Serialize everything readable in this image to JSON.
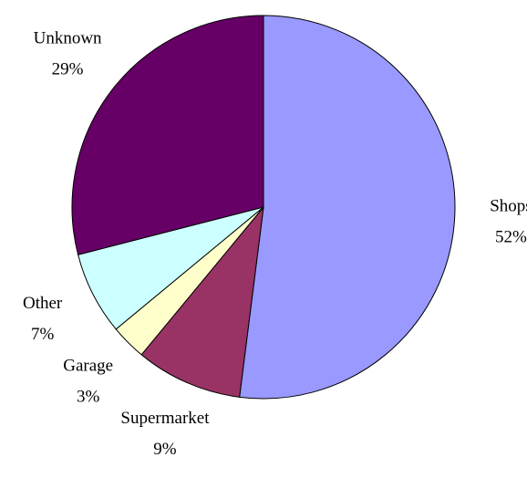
{
  "chart_data": {
    "type": "pie",
    "categories": [
      "Shops",
      "Supermarket",
      "Garage",
      "Other",
      "Unknown"
    ],
    "values": [
      52,
      9,
      3,
      7,
      29
    ],
    "value_labels": [
      "52%",
      "9%",
      "3%",
      "7%",
      "29%"
    ],
    "colors": [
      "#9999ff",
      "#993366",
      "#ffffcc",
      "#ccffff",
      "#660066"
    ]
  }
}
